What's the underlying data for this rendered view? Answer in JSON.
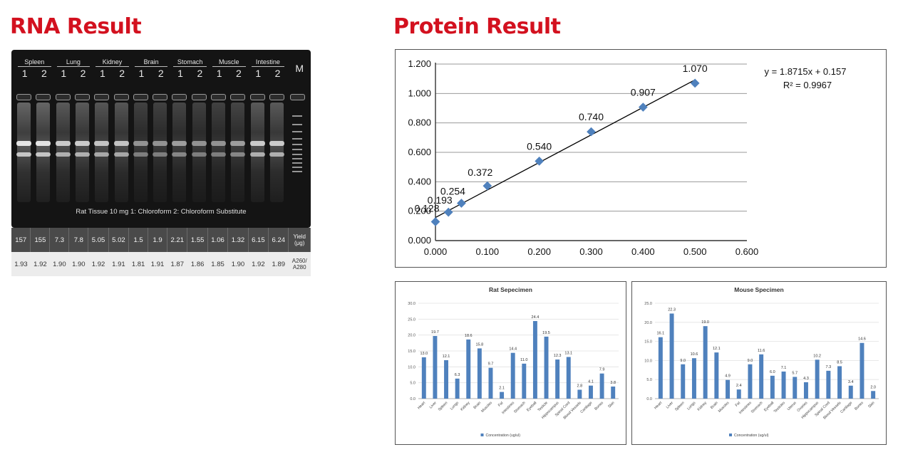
{
  "headings": {
    "rna": "RNA Result",
    "protein": "Protein Result"
  },
  "gel": {
    "lane_groups": [
      {
        "name": "Spleen",
        "lanes": [
          "1",
          "2"
        ]
      },
      {
        "name": "Lung",
        "lanes": [
          "1",
          "2"
        ]
      },
      {
        "name": "Kidney",
        "lanes": [
          "1",
          "2"
        ]
      },
      {
        "name": "Brain",
        "lanes": [
          "1",
          "2"
        ]
      },
      {
        "name": "Stomach",
        "lanes": [
          "1",
          "2"
        ]
      },
      {
        "name": "Muscle",
        "lanes": [
          "1",
          "2"
        ]
      },
      {
        "name": "Intestine",
        "lanes": [
          "1",
          "2"
        ]
      }
    ],
    "marker": "M",
    "caption": "Rat Tissue  10 mg      1: Chloroform    2: Chloroform Substitute",
    "yield_values": [
      "157",
      "155",
      "7.3",
      "7.8",
      "5.05",
      "5.02",
      "1.5",
      "1.9",
      "2.21",
      "1.55",
      "1.06",
      "1.32",
      "6.15",
      "6.24"
    ],
    "yield_label": [
      "Yield",
      "(μg)"
    ],
    "ratio_values": [
      "1.93",
      "1.92",
      "1.90",
      "1.90",
      "1.92",
      "1.91",
      "1.81",
      "1.91",
      "1.87",
      "1.86",
      "1.85",
      "1.90",
      "1.92",
      "1.89"
    ],
    "ratio_label": [
      "A260/",
      "A280"
    ]
  },
  "chart_data": [
    {
      "type": "scatter",
      "title": "",
      "x": [
        0.0,
        0.025,
        0.05,
        0.1,
        0.2,
        0.3,
        0.4,
        0.5
      ],
      "y": [
        0.128,
        0.193,
        0.254,
        0.372,
        0.54,
        0.74,
        0.907,
        1.07
      ],
      "point_labels": [
        "0.128",
        "0.193",
        "0.254",
        "0.372",
        "0.540",
        "0.740",
        "0.907",
        "1.070"
      ],
      "trendline": {
        "slope": 1.8715,
        "intercept": 0.157,
        "equation": "y = 1.8715x + 0.157",
        "r2": "R² = 0.9967"
      },
      "xlim": [
        0,
        0.6
      ],
      "ylim": [
        0,
        1.2
      ],
      "xticks": [
        "0.000",
        "0.100",
        "0.200",
        "0.300",
        "0.400",
        "0.500",
        "0.600"
      ],
      "yticks": [
        "0.000",
        "0.200",
        "0.400",
        "0.600",
        "0.800",
        "1.000",
        "1.200"
      ],
      "grid": true,
      "color": "#4f81bd"
    },
    {
      "type": "bar",
      "title": "Rat Sepecimen",
      "categories": [
        "Heart",
        "Liver",
        "Spleen",
        "Lungs",
        "Kidney",
        "Brain",
        "Muscles",
        "Fat",
        "Intestines",
        "Stomach",
        "Eyeball",
        "Testicle",
        "Hippocampus",
        "Spinal Cord",
        "Blood Vessels",
        "Cartilage",
        "Bones",
        "Skin"
      ],
      "values": [
        13.0,
        19.7,
        12.1,
        6.3,
        18.6,
        15.8,
        9.7,
        2.1,
        14.4,
        11.0,
        24.4,
        19.5,
        12.3,
        13.1,
        2.8,
        4.1,
        7.9,
        3.8
      ],
      "value_labels": [
        "13.0",
        "19.7",
        "12.1",
        "6.3",
        "18.6",
        "15.8",
        "9.7",
        "2.1",
        "14.4",
        "11.0",
        "24.4",
        "19.5",
        "12.3",
        "13.1",
        "2.8",
        "4.1",
        "7.9",
        "3.8"
      ],
      "ylim": [
        0,
        30
      ],
      "yticks": [
        "0.0",
        "5.0",
        "10.0",
        "15.0",
        "20.0",
        "25.0",
        "30.0"
      ],
      "legend": "Concentration (ug/ul)",
      "color": "#4f81bd"
    },
    {
      "type": "bar",
      "title": "Mouse Specimen",
      "categories": [
        "Heart",
        "Liver",
        "Spleen",
        "Lungs",
        "Kidney",
        "Brain",
        "Muscles",
        "Fat",
        "Intestines",
        "Stomach",
        "Eyeball",
        "Testicles",
        "Uterus",
        "Ovaries",
        "Hippocampus",
        "Spinal Cord",
        "Blood Vessels",
        "Cartilage",
        "Bones",
        "Skin"
      ],
      "values": [
        16.1,
        22.3,
        9.0,
        10.6,
        19.0,
        12.1,
        4.9,
        2.4,
        9.0,
        11.6,
        6.0,
        7.1,
        5.7,
        4.3,
        10.2,
        7.3,
        8.5,
        3.4,
        14.6,
        2.0
      ],
      "value_labels": [
        "16.1",
        "22.3",
        "9.0",
        "10.6",
        "19.0",
        "12.1",
        "4.9",
        "2.4",
        "9.0",
        "11.6",
        "6.0",
        "7.1",
        "5.7",
        "4.3",
        "10.2",
        "7.3",
        "8.5",
        "3.4",
        "14.6",
        "2.0"
      ],
      "ylim": [
        0,
        25
      ],
      "yticks": [
        "0.0",
        "5.0",
        "10.0",
        "15.0",
        "20.0",
        "25.0"
      ],
      "legend": "Concentration (ug/ul)",
      "color": "#4f81bd"
    }
  ]
}
